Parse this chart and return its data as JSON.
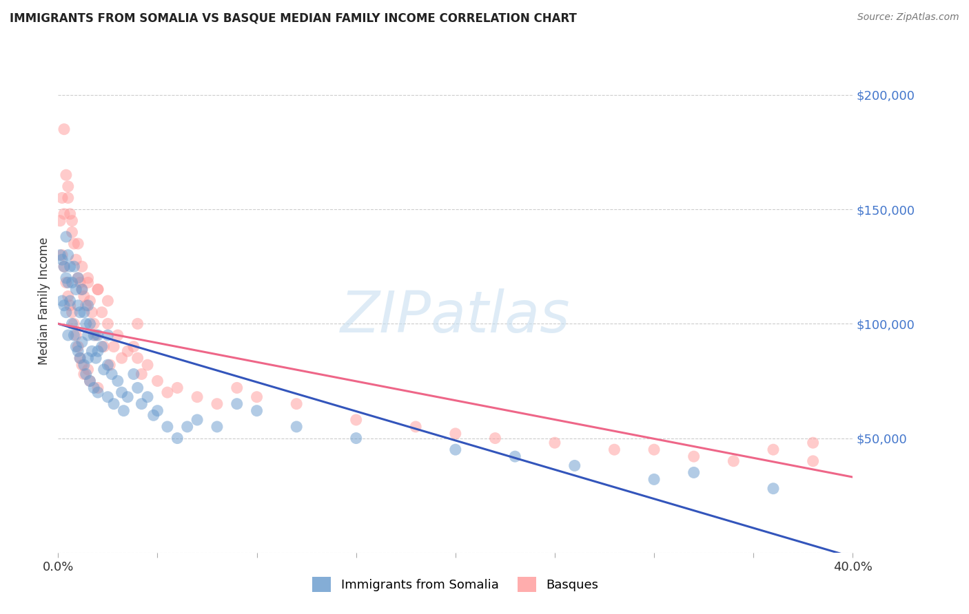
{
  "title": "IMMIGRANTS FROM SOMALIA VS BASQUE MEDIAN FAMILY INCOME CORRELATION CHART",
  "source": "Source: ZipAtlas.com",
  "ylabel": "Median Family Income",
  "legend_label_1": "Immigrants from Somalia",
  "legend_label_2": "Basques",
  "color_somalia": "#6699CC",
  "color_basque": "#FF9999",
  "color_line_somalia": "#3355BB",
  "color_line_basque": "#EE6688",
  "xlim": [
    0.0,
    0.4
  ],
  "ylim": [
    0,
    220000
  ],
  "yticks": [
    0,
    50000,
    100000,
    150000,
    200000
  ],
  "ytick_labels": [
    "",
    "$50,000",
    "$100,000",
    "$150,000",
    "$200,000"
  ],
  "watermark": "ZIPatlas",
  "line_somalia_x0": 0.0,
  "line_somalia_y0": 100000,
  "line_somalia_x1": 0.4,
  "line_somalia_y1": -2000,
  "line_basque_x0": 0.0,
  "line_basque_y0": 100000,
  "line_basque_x1": 0.4,
  "line_basque_y1": 33000,
  "scatter_somalia_x": [
    0.001,
    0.002,
    0.002,
    0.003,
    0.003,
    0.004,
    0.004,
    0.004,
    0.005,
    0.005,
    0.005,
    0.006,
    0.006,
    0.007,
    0.007,
    0.008,
    0.008,
    0.009,
    0.009,
    0.01,
    0.01,
    0.01,
    0.011,
    0.011,
    0.012,
    0.012,
    0.013,
    0.013,
    0.014,
    0.014,
    0.015,
    0.015,
    0.016,
    0.016,
    0.017,
    0.018,
    0.018,
    0.019,
    0.02,
    0.02,
    0.022,
    0.023,
    0.025,
    0.025,
    0.027,
    0.028,
    0.03,
    0.032,
    0.033,
    0.035,
    0.038,
    0.04,
    0.042,
    0.045,
    0.048,
    0.05,
    0.055,
    0.06,
    0.065,
    0.07,
    0.08,
    0.09,
    0.1,
    0.12,
    0.15,
    0.2,
    0.23,
    0.26,
    0.3,
    0.32,
    0.015,
    0.02,
    0.025,
    0.36
  ],
  "scatter_somalia_y": [
    130000,
    128000,
    110000,
    125000,
    108000,
    138000,
    120000,
    105000,
    130000,
    118000,
    95000,
    125000,
    110000,
    118000,
    100000,
    125000,
    95000,
    115000,
    90000,
    120000,
    108000,
    88000,
    105000,
    85000,
    115000,
    92000,
    105000,
    82000,
    100000,
    78000,
    108000,
    85000,
    100000,
    75000,
    88000,
    95000,
    72000,
    85000,
    95000,
    70000,
    90000,
    80000,
    95000,
    68000,
    78000,
    65000,
    75000,
    70000,
    62000,
    68000,
    78000,
    72000,
    65000,
    68000,
    60000,
    62000,
    55000,
    50000,
    55000,
    58000,
    55000,
    65000,
    62000,
    55000,
    50000,
    45000,
    42000,
    38000,
    32000,
    35000,
    95000,
    88000,
    82000,
    28000
  ],
  "scatter_basque_x": [
    0.001,
    0.002,
    0.002,
    0.003,
    0.003,
    0.004,
    0.004,
    0.005,
    0.005,
    0.006,
    0.006,
    0.007,
    0.007,
    0.008,
    0.008,
    0.009,
    0.009,
    0.01,
    0.01,
    0.011,
    0.011,
    0.012,
    0.012,
    0.013,
    0.013,
    0.014,
    0.015,
    0.015,
    0.016,
    0.016,
    0.017,
    0.018,
    0.019,
    0.02,
    0.02,
    0.022,
    0.023,
    0.025,
    0.026,
    0.028,
    0.03,
    0.032,
    0.035,
    0.038,
    0.04,
    0.042,
    0.045,
    0.05,
    0.055,
    0.06,
    0.07,
    0.08,
    0.09,
    0.1,
    0.12,
    0.15,
    0.18,
    0.2,
    0.22,
    0.25,
    0.28,
    0.3,
    0.32,
    0.34,
    0.36,
    0.38,
    0.003,
    0.005,
    0.007,
    0.01,
    0.012,
    0.015,
    0.02,
    0.025,
    0.04,
    0.38
  ],
  "scatter_basque_y": [
    145000,
    155000,
    130000,
    148000,
    125000,
    165000,
    118000,
    155000,
    112000,
    148000,
    108000,
    140000,
    105000,
    135000,
    100000,
    128000,
    95000,
    120000,
    90000,
    118000,
    85000,
    115000,
    82000,
    112000,
    78000,
    108000,
    118000,
    80000,
    110000,
    75000,
    105000,
    100000,
    95000,
    115000,
    72000,
    105000,
    90000,
    100000,
    82000,
    90000,
    95000,
    85000,
    88000,
    90000,
    85000,
    78000,
    82000,
    75000,
    70000,
    72000,
    68000,
    65000,
    72000,
    68000,
    65000,
    58000,
    55000,
    52000,
    50000,
    48000,
    45000,
    45000,
    42000,
    40000,
    45000,
    40000,
    185000,
    160000,
    145000,
    135000,
    125000,
    120000,
    115000,
    110000,
    100000,
    48000
  ]
}
